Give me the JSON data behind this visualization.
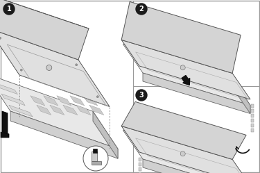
{
  "bg_color": "#ffffff",
  "panel_border": "#999999",
  "step_circle_color": "#1a1a1a",
  "step_text_color": "#ffffff",
  "chassis_top": "#e8e8e8",
  "chassis_front": "#d0d0d0",
  "chassis_right": "#c0c0c0",
  "chassis_edge": "#666666",
  "cover_top": "#e0e0e0",
  "cover_flap": "#d4d4d4",
  "cover_edge": "#555555",
  "dashed_color": "#888888",
  "arrow_color": "#111111",
  "bracket_color": "#111111",
  "pcb_color": "#d8d8d8",
  "fan_color": "#cccccc"
}
